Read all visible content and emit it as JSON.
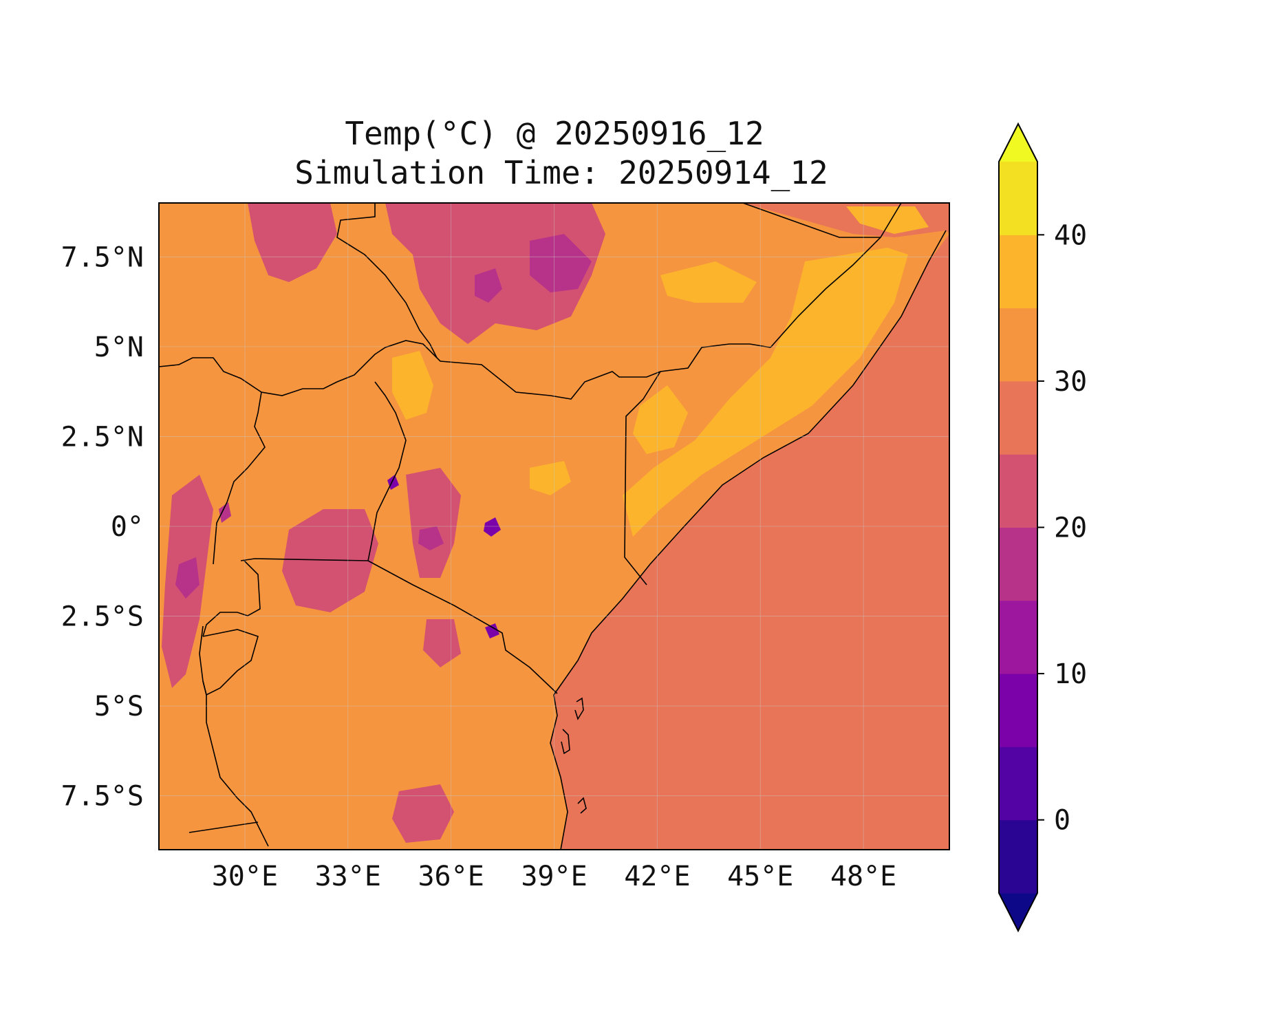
{
  "title": {
    "line1": "Temp(°C) @ 20250916_12",
    "line2": "Simulation Time: 20250914_12"
  },
  "map": {
    "projection": "PlateCarree",
    "lon_range": [
      27.5,
      50.5
    ],
    "lat_range": [
      -9.0,
      9.0
    ],
    "lon_ticks": [
      {
        "value": 30,
        "label": "30°E"
      },
      {
        "value": 33,
        "label": "33°E"
      },
      {
        "value": 36,
        "label": "36°E"
      },
      {
        "value": 39,
        "label": "39°E"
      },
      {
        "value": 42,
        "label": "42°E"
      },
      {
        "value": 45,
        "label": "45°E"
      },
      {
        "value": 48,
        "label": "48°E"
      }
    ],
    "lat_ticks": [
      {
        "value": 7.5,
        "label": "7.5°N"
      },
      {
        "value": 5,
        "label": "5°N"
      },
      {
        "value": 2.5,
        "label": "2.5°N"
      },
      {
        "value": 0,
        "label": "0°"
      },
      {
        "value": -2.5,
        "label": "2.5°S"
      },
      {
        "value": -5,
        "label": "5°S"
      },
      {
        "value": -7.5,
        "label": "7.5°S"
      }
    ],
    "gridlines": true,
    "gridline_color": "#c8c8c8",
    "ocean_color": "#e87558",
    "land_color": "#f6953f",
    "boundary_color": "#000000"
  },
  "colorbar": {
    "colormap": "plasma",
    "min": -5,
    "max": 45,
    "step": 5,
    "extend": "both",
    "ticks": [
      {
        "value": 0,
        "label": "0"
      },
      {
        "value": 10,
        "label": "10"
      },
      {
        "value": 20,
        "label": "20"
      },
      {
        "value": 30,
        "label": "30"
      },
      {
        "value": 40,
        "label": "40"
      }
    ],
    "bins": [
      {
        "from": -10,
        "to": -5,
        "color": "#0d0887"
      },
      {
        "from": -5,
        "to": 0,
        "color": "#2a0593"
      },
      {
        "from": 0,
        "to": 5,
        "color": "#5302a3"
      },
      {
        "from": 5,
        "to": 10,
        "color": "#7a02a8"
      },
      {
        "from": 10,
        "to": 15,
        "color": "#9c179e"
      },
      {
        "from": 15,
        "to": 20,
        "color": "#b7338a"
      },
      {
        "from": 20,
        "to": 25,
        "color": "#d35171"
      },
      {
        "from": 25,
        "to": 30,
        "color": "#e87558"
      },
      {
        "from": 30,
        "to": 35,
        "color": "#f6953f"
      },
      {
        "from": 35,
        "to": 40,
        "color": "#fcb42c"
      },
      {
        "from": 40,
        "to": 45,
        "color": "#f4e023"
      },
      {
        "from": 45,
        "to": 50,
        "color": "#f0f921"
      }
    ]
  }
}
